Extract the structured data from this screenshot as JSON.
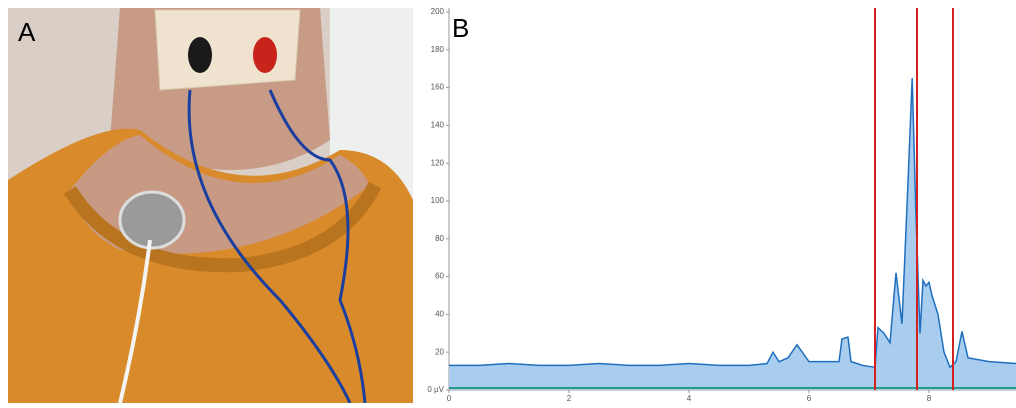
{
  "panel_a": {
    "label": "A"
  },
  "chart_data": {
    "type": "area",
    "panel_label": "B",
    "x": [
      0,
      0.5,
      1,
      1.5,
      2,
      2.5,
      3,
      3.5,
      4,
      4.5,
      5,
      5.3,
      5.4,
      5.5,
      5.65,
      5.8,
      6.0,
      6.3,
      6.5,
      6.55,
      6.65,
      6.7,
      6.9,
      7.1,
      7.15,
      7.25,
      7.35,
      7.45,
      7.55,
      7.65,
      7.72,
      7.78,
      7.85,
      7.9,
      7.95,
      8.0,
      8.05,
      8.15,
      8.25,
      8.35,
      8.45,
      8.55,
      8.65,
      9.0,
      9.45
    ],
    "series": [
      {
        "color": "#1f6fbf",
        "fill": "#a9cdef",
        "values": [
          13,
          13,
          14,
          13,
          13,
          14,
          13,
          13,
          14,
          13,
          13,
          14,
          20,
          15,
          17,
          24,
          15,
          15,
          15,
          27,
          28,
          15,
          13,
          12,
          33,
          30,
          25,
          62,
          35,
          110,
          165,
          95,
          30,
          58,
          55,
          57,
          50,
          40,
          20,
          12,
          15,
          31,
          17,
          15,
          14
        ]
      }
    ],
    "markers": [
      7.1,
      7.8,
      8.4
    ],
    "marker_color": "#d42020",
    "xlim": [
      0,
      9.45
    ],
    "ylim": [
      0,
      200
    ],
    "xticks": [
      0,
      2,
      4,
      6,
      8
    ],
    "yticks": [
      {
        "value": 0,
        "label": "0 µV"
      },
      20,
      40,
      60,
      80,
      100,
      120,
      140,
      160,
      180,
      200
    ]
  }
}
